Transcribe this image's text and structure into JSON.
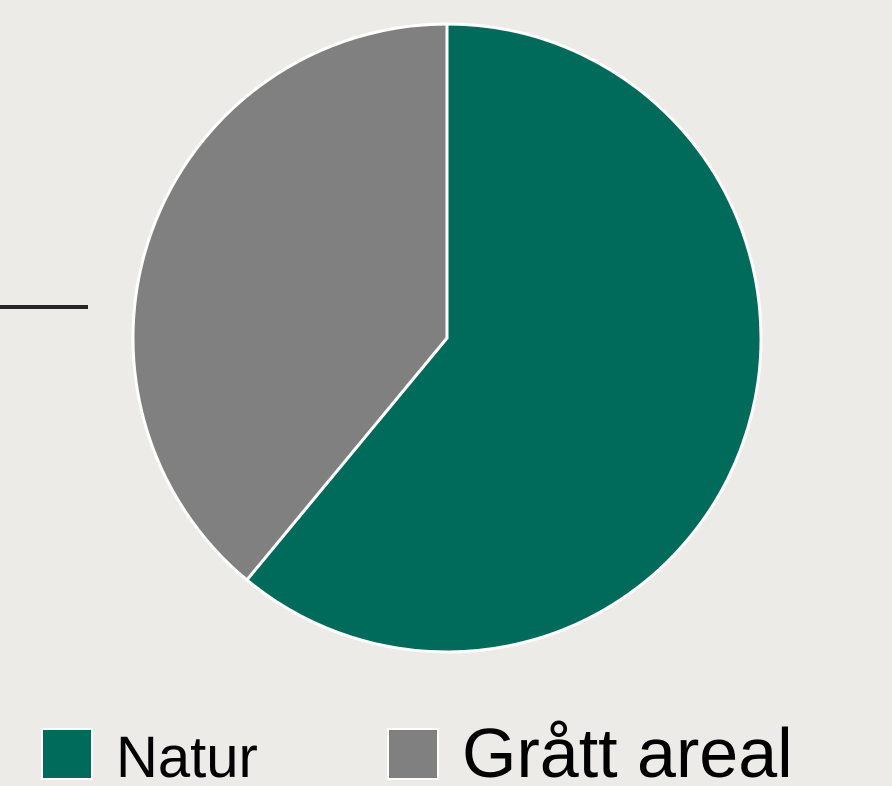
{
  "chart_data": {
    "type": "pie",
    "categories": [
      "Natur",
      "Grått areal"
    ],
    "values": [
      61,
      39
    ],
    "colors": [
      "#006b5a",
      "#808080"
    ],
    "legend": "bottom"
  }
}
